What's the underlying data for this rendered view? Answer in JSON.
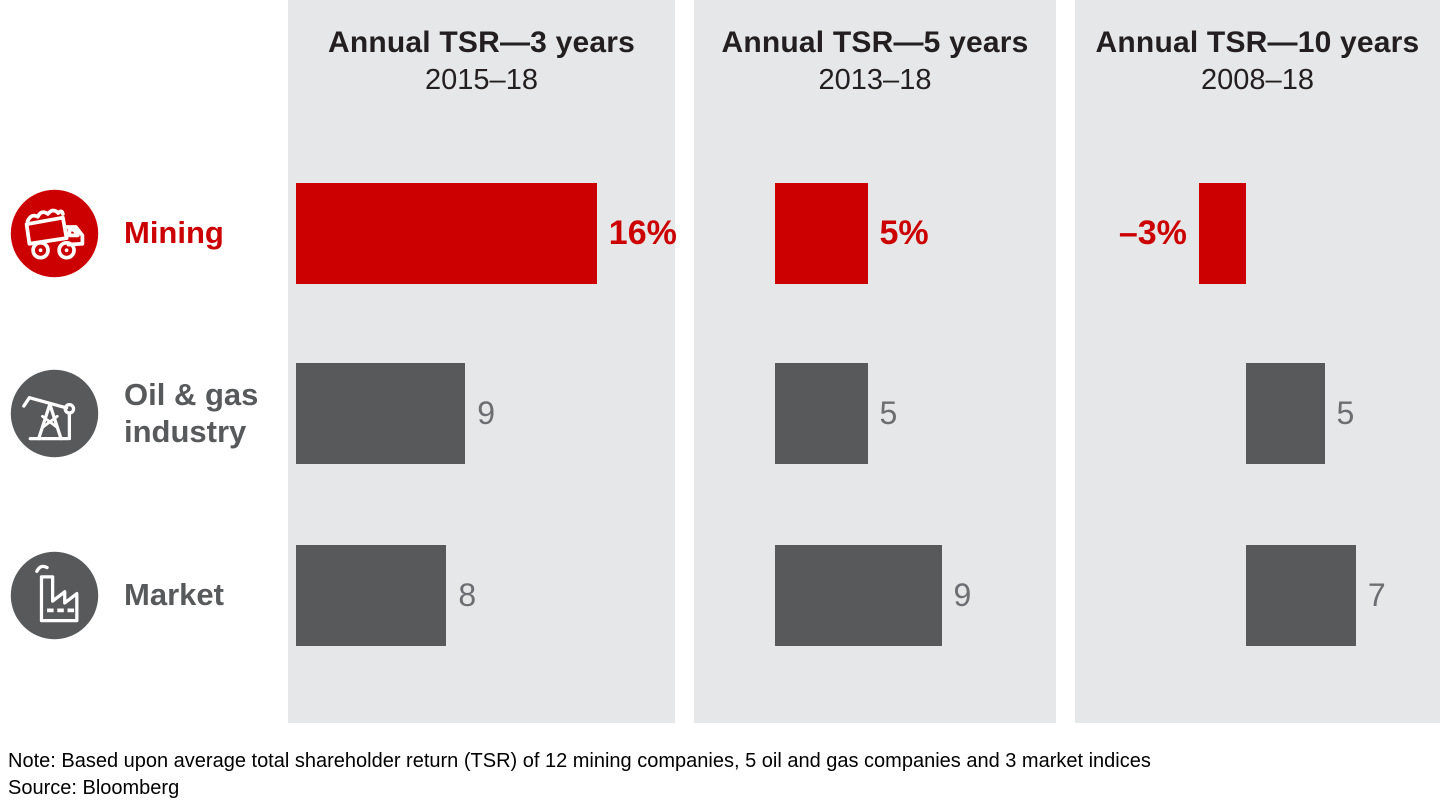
{
  "colors": {
    "accent_red": "#cc0000",
    "bar_gray": "#58595b",
    "value_gray": "#6d6e71",
    "panel_bg": "#e6e7e8",
    "text_dark": "#231f20"
  },
  "panels": [
    {
      "title": "Annual TSR—3 years",
      "period": "2015–18"
    },
    {
      "title": "Annual TSR—5 years",
      "period": "2013–18"
    },
    {
      "title": "Annual TSR—10 years",
      "period": "2008–18"
    }
  ],
  "legend": {
    "rows": [
      {
        "label": "Mining",
        "icon": "dump-truck-icon",
        "color": "#cc0000"
      },
      {
        "label": "Oil & gas industry",
        "icon": "oil-pump-icon",
        "color": "#58595b"
      },
      {
        "label": "Market",
        "icon": "factory-icon",
        "color": "#58595b"
      }
    ]
  },
  "footnote": {
    "note": "Note: Based upon average total shareholder return (TSR) of 12 mining companies, 5 oil and gas companies and 3 market indices",
    "source": "Source: Bloomberg"
  },
  "chart_data": {
    "type": "bar",
    "orientation": "horizontal",
    "groups": [
      "Annual TSR—3 years (2015–18)",
      "Annual TSR—5 years (2013–18)",
      "Annual TSR—10 years (2008–18)"
    ],
    "categories": [
      "Mining",
      "Oil & gas industry",
      "Market"
    ],
    "series": [
      {
        "name": "Mining",
        "values": [
          16,
          5,
          -3
        ],
        "labels": [
          "16%",
          "5%",
          "–3%"
        ],
        "color": "#cc0000"
      },
      {
        "name": "Oil & gas industry",
        "values": [
          9,
          5,
          5
        ],
        "labels": [
          "9",
          "5",
          "5"
        ],
        "color": "#58595b"
      },
      {
        "name": "Market",
        "values": [
          8,
          9,
          7
        ],
        "labels": [
          "8",
          "9",
          "7"
        ],
        "color": "#58595b"
      }
    ],
    "unit": "annual TSR, percent",
    "legend_position": "left",
    "grid": false
  }
}
